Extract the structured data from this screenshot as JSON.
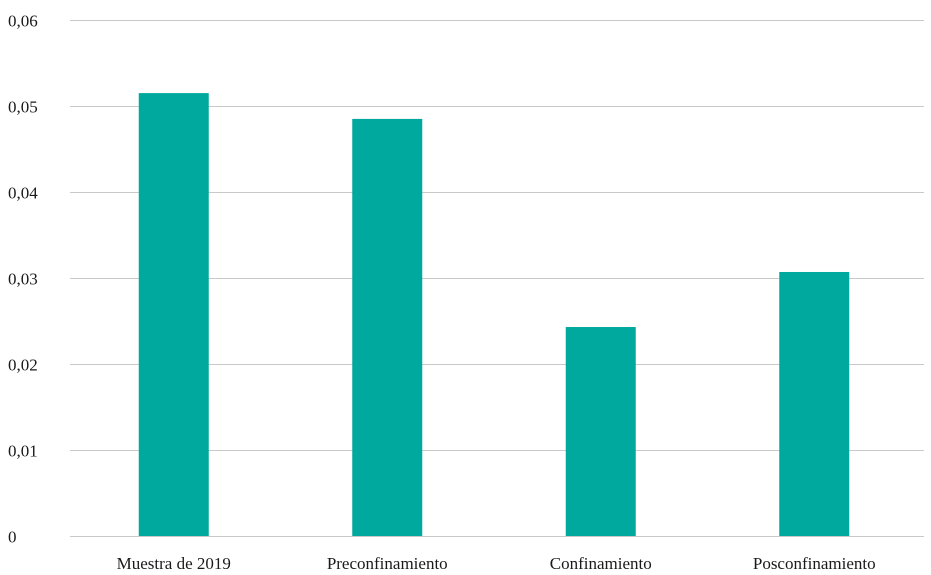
{
  "chart_data": {
    "type": "bar",
    "title": "",
    "xlabel": "",
    "ylabel": "",
    "categories": [
      "Muestra de 2019",
      "Preconfinamiento",
      "Confinamiento",
      "Posconfinamiento"
    ],
    "series": [
      {
        "values": [
          0.0515,
          0.0485,
          0.0243,
          0.0307
        ],
        "color": "#00A99D"
      }
    ],
    "ylim": [
      0,
      0.06
    ],
    "yticks": [
      0,
      0.01,
      0.02,
      0.03,
      0.04,
      0.05,
      0.06
    ],
    "ytick_labels": [
      "0",
      "0,01",
      "0,02",
      "0,03",
      "0,04",
      "0,05",
      "0,06"
    ],
    "grid": true,
    "gridline_color": "#c9c9c9",
    "legend": "none"
  }
}
